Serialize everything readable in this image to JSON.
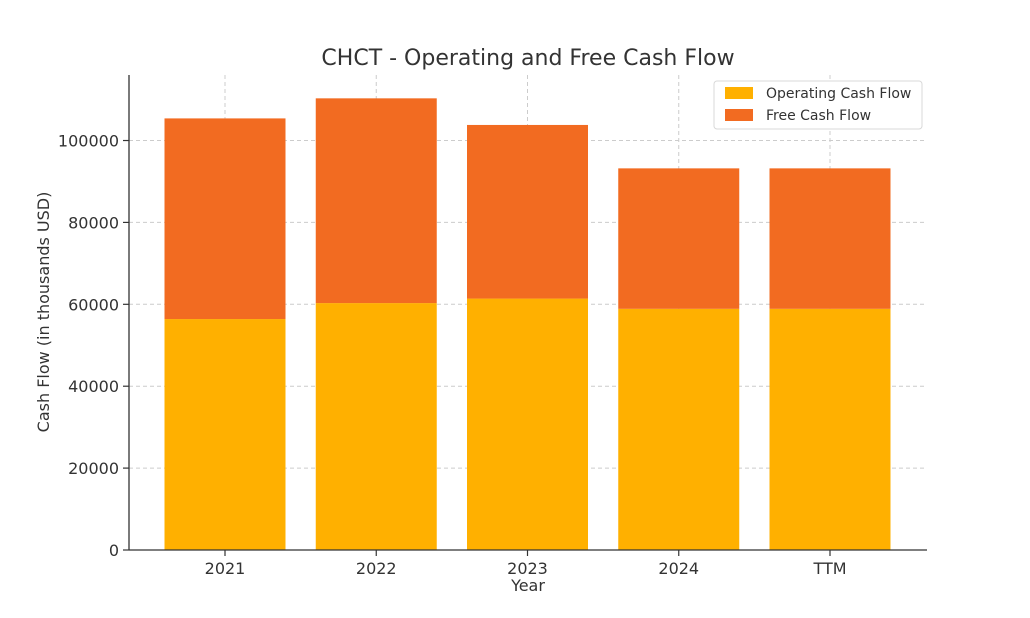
{
  "chart_data": {
    "type": "bar",
    "stacked": true,
    "title": "CHCT - Operating and Free Cash Flow",
    "xlabel": "Year",
    "ylabel": "Cash Flow (in thousands USD)",
    "categories": [
      "2021",
      "2022",
      "2023",
      "2024",
      "TTM"
    ],
    "series": [
      {
        "name": "Operating Cash Flow",
        "color": "#FFB000",
        "values": [
          56400,
          60300,
          61400,
          58900,
          58900
        ]
      },
      {
        "name": "Free Cash Flow",
        "color": "#F26B21",
        "values": [
          49000,
          50000,
          42400,
          34300,
          34300
        ]
      }
    ],
    "ylim": [
      0,
      116000
    ],
    "yticks": [
      0,
      20000,
      40000,
      60000,
      80000,
      100000
    ],
    "grid": true,
    "legend_position": "top-right"
  }
}
